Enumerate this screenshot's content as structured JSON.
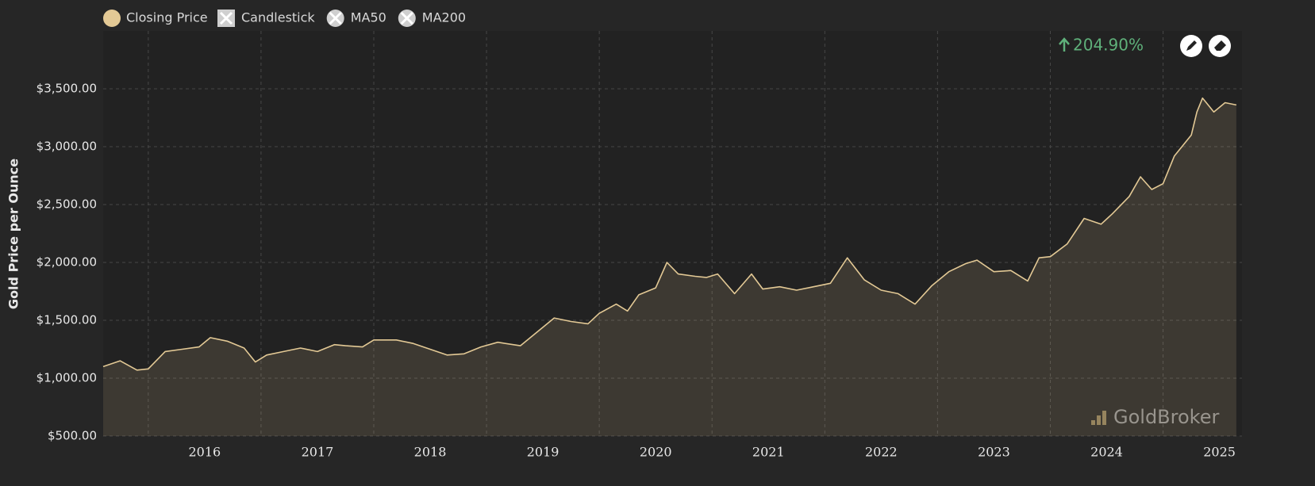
{
  "chart_data": {
    "type": "area",
    "y_label": "Gold Price per Ounce",
    "annotation": "204.90%",
    "watermark": "GoldBroker",
    "toggles": [
      "Candlestick",
      "MA50",
      "MA200"
    ],
    "xlim": [
      2015.6,
      2025.7
    ],
    "xticks": [
      2016,
      2017,
      2018,
      2019,
      2020,
      2021,
      2022,
      2023,
      2024,
      2025
    ],
    "ylim": [
      500,
      4000
    ],
    "yticks": [
      {
        "value": 500,
        "label": "$500.00"
      },
      {
        "value": 1000,
        "label": "$1,000.00"
      },
      {
        "value": 1500,
        "label": "$1,500.00"
      },
      {
        "value": 2000,
        "label": "$2,000.00"
      },
      {
        "value": 2500,
        "label": "$2,500.00"
      },
      {
        "value": 3000,
        "label": "$3,000.00"
      },
      {
        "value": 3500,
        "label": "$3,500.00"
      }
    ],
    "grid": true,
    "x": [
      2015.6,
      2015.75,
      2015.9,
      2016.0,
      2016.15,
      2016.3,
      2016.45,
      2016.55,
      2016.7,
      2016.85,
      2016.95,
      2017.05,
      2017.2,
      2017.35,
      2017.5,
      2017.65,
      2017.75,
      2017.9,
      2018.0,
      2018.2,
      2018.35,
      2018.5,
      2018.65,
      2018.8,
      2018.95,
      2019.1,
      2019.3,
      2019.45,
      2019.6,
      2019.75,
      2019.9,
      2020.0,
      2020.15,
      2020.25,
      2020.35,
      2020.5,
      2020.6,
      2020.7,
      2020.85,
      2020.95,
      2021.05,
      2021.2,
      2021.35,
      2021.45,
      2021.6,
      2021.75,
      2021.9,
      2022.05,
      2022.2,
      2022.35,
      2022.5,
      2022.65,
      2022.8,
      2022.95,
      2023.1,
      2023.25,
      2023.35,
      2023.5,
      2023.65,
      2023.8,
      2023.9,
      2024.0,
      2024.15,
      2024.3,
      2024.45,
      2024.55,
      2024.7,
      2024.8,
      2024.9,
      2025.0,
      2025.1,
      2025.25,
      2025.3,
      2025.35,
      2025.45,
      2025.55,
      2025.65
    ],
    "series": [
      {
        "name": "Closing Price",
        "color": "#e3c995",
        "values": [
          1100,
          1150,
          1070,
          1080,
          1230,
          1250,
          1270,
          1350,
          1320,
          1260,
          1140,
          1200,
          1230,
          1260,
          1230,
          1290,
          1280,
          1270,
          1330,
          1330,
          1300,
          1250,
          1200,
          1210,
          1270,
          1310,
          1280,
          1400,
          1520,
          1490,
          1470,
          1560,
          1640,
          1580,
          1720,
          1780,
          2000,
          1900,
          1880,
          1870,
          1900,
          1730,
          1900,
          1770,
          1790,
          1760,
          1790,
          1820,
          2040,
          1850,
          1760,
          1730,
          1640,
          1800,
          1920,
          1990,
          2020,
          1920,
          1930,
          1840,
          2040,
          2050,
          2160,
          2380,
          2330,
          2420,
          2570,
          2740,
          2630,
          2680,
          2920,
          3100,
          3300,
          3420,
          3300,
          3380,
          3360
        ]
      }
    ]
  }
}
